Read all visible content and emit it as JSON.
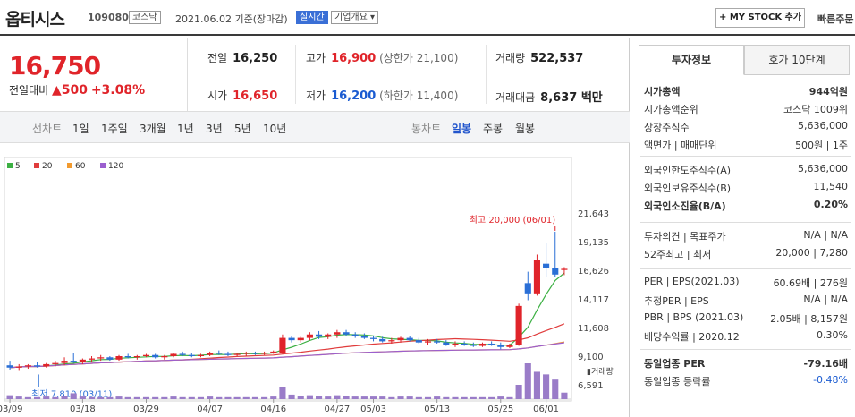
{
  "header": {
    "name": "옵티시스",
    "code": "109080",
    "market_tag": "코스닥",
    "date": "2021.06.02 기준(장마감)",
    "realtime_tag": "실시간",
    "company_tag": "기업개요 ▾",
    "mystock_label": "+ MY STOCK 추가",
    "quick_order": "빠른주문"
  },
  "price": {
    "current": "16,750",
    "change_label": "전일대비",
    "change": "▲500",
    "change_pct": "+3.08%"
  },
  "stats": {
    "prev_label": "전일",
    "prev": "16,250",
    "high_label": "고가",
    "high": "16,900",
    "upper": "(상한가 21,100)",
    "vol_label": "거래량",
    "vol": "522,537",
    "open_label": "시가",
    "open": "16,650",
    "low_label": "저가",
    "low": "16,200",
    "lower": "(하한가 11,400)",
    "amt_label": "거래대금",
    "amt": "8,637 백만"
  },
  "tabs": {
    "line_label": "선차트",
    "d1": "1일",
    "w1": "1주일",
    "m3": "3개월",
    "y1": "1년",
    "y3": "3년",
    "y5": "5년",
    "y10": "10년",
    "candle_label": "봉차트",
    "daily": "일봉",
    "weekly": "주봉",
    "monthly": "월봉"
  },
  "chart_data": {
    "type": "line",
    "title": "",
    "legend": [
      {
        "name": "5",
        "color": "#3cb043"
      },
      {
        "name": "20",
        "color": "#e03c3c"
      },
      {
        "name": "60",
        "color": "#f29a2e"
      },
      {
        "name": "120",
        "color": "#9b5fcf"
      }
    ],
    "y_ticks": [
      "21,643",
      "19,135",
      "16,626",
      "14,117",
      "11,608",
      "9,100",
      "6,591"
    ],
    "x_ticks": [
      "03/09",
      "03/18",
      "03/29",
      "04/07",
      "04/16",
      "04/27",
      "05/03",
      "05/13",
      "05/25",
      "06/01"
    ],
    "ylim": [
      6591,
      21643
    ],
    "high_annotation": "최고 20,000 (06/01)",
    "low_annotation": "최저 7,810 (03/11)",
    "volume_label": "거래량",
    "candles": [
      [
        8300,
        8700,
        7900,
        8100
      ],
      [
        8100,
        8400,
        7810,
        8200
      ],
      [
        8200,
        8400,
        8000,
        8300
      ],
      [
        8300,
        8600,
        8100,
        8200
      ],
      [
        8200,
        8500,
        8100,
        8400
      ],
      [
        8400,
        8700,
        8200,
        8500
      ],
      [
        8500,
        9000,
        8300,
        8700
      ],
      [
        8700,
        9400,
        8500,
        8600
      ],
      [
        8600,
        8900,
        8400,
        8800
      ],
      [
        8800,
        9100,
        8600,
        8900
      ],
      [
        8900,
        9200,
        8700,
        9000
      ],
      [
        9000,
        9100,
        8700,
        8800
      ],
      [
        8800,
        9200,
        8700,
        9100
      ],
      [
        9100,
        9300,
        8900,
        9000
      ],
      [
        9000,
        9200,
        8800,
        9100
      ],
      [
        9100,
        9300,
        9000,
        9200
      ],
      [
        9200,
        9300,
        8900,
        9000
      ],
      [
        9000,
        9200,
        8800,
        9100
      ],
      [
        9100,
        9400,
        9000,
        9300
      ],
      [
        9300,
        9500,
        9100,
        9200
      ],
      [
        9200,
        9400,
        9000,
        9100
      ],
      [
        9100,
        9300,
        9000,
        9200
      ],
      [
        9200,
        9500,
        9100,
        9400
      ],
      [
        9400,
        9600,
        9200,
        9300
      ],
      [
        9300,
        9500,
        9100,
        9200
      ],
      [
        9200,
        9400,
        9100,
        9300
      ],
      [
        9300,
        9500,
        9100,
        9400
      ],
      [
        9400,
        9500,
        9200,
        9300
      ],
      [
        9300,
        9500,
        9200,
        9400
      ],
      [
        9400,
        9600,
        9300,
        9500
      ],
      [
        9400,
        11000,
        9300,
        10700
      ],
      [
        10700,
        10900,
        10300,
        10500
      ],
      [
        10500,
        10800,
        10300,
        10700
      ],
      [
        10700,
        11200,
        10500,
        11000
      ],
      [
        11000,
        11300,
        10600,
        10800
      ],
      [
        10800,
        11100,
        10600,
        11000
      ],
      [
        11000,
        11400,
        10700,
        11200
      ],
      [
        11200,
        11400,
        10900,
        11000
      ],
      [
        11000,
        11200,
        10700,
        10900
      ],
      [
        10900,
        11100,
        10600,
        10700
      ],
      [
        10700,
        10900,
        10400,
        10600
      ],
      [
        10600,
        10800,
        10300,
        10400
      ],
      [
        10400,
        10700,
        10200,
        10500
      ],
      [
        10500,
        10800,
        10300,
        10700
      ],
      [
        10700,
        10900,
        10400,
        10500
      ],
      [
        10500,
        10700,
        10200,
        10300
      ],
      [
        10300,
        10600,
        10100,
        10400
      ],
      [
        10400,
        10600,
        10200,
        10300
      ],
      [
        10300,
        10500,
        10000,
        10100
      ],
      [
        10100,
        10400,
        9900,
        10200
      ],
      [
        10200,
        10400,
        10000,
        10100
      ],
      [
        10100,
        10300,
        9900,
        10000
      ],
      [
        10000,
        10300,
        9900,
        10200
      ],
      [
        10200,
        10400,
        10000,
        10100
      ],
      [
        10100,
        10300,
        9700,
        9900
      ],
      [
        9900,
        10200,
        9800,
        10100
      ],
      [
        10100,
        13700,
        10000,
        13500
      ],
      [
        15500,
        16500,
        14000,
        14600
      ],
      [
        14600,
        18000,
        14400,
        17500
      ],
      [
        17200,
        19000,
        16000,
        16800
      ],
      [
        16800,
        20000,
        16000,
        16250
      ],
      [
        16650,
        16900,
        16200,
        16750
      ]
    ],
    "volumes": [
      6,
      4,
      3,
      3,
      4,
      3,
      5,
      9,
      4,
      3,
      3,
      3,
      4,
      3,
      3,
      3,
      3,
      3,
      4,
      3,
      3,
      3,
      4,
      3,
      3,
      3,
      3,
      3,
      3,
      4,
      18,
      7,
      5,
      6,
      5,
      4,
      6,
      5,
      4,
      4,
      4,
      4,
      3,
      4,
      4,
      3,
      3,
      4,
      3,
      3,
      3,
      3,
      3,
      3,
      4,
      3,
      22,
      55,
      42,
      38,
      30,
      10
    ]
  },
  "side": {
    "tab_info": "투자정보",
    "tab_quote": "호가 10단계",
    "rows": [
      {
        "k": "시가총액",
        "v": "944억원"
      },
      {
        "k": "시가총액순위",
        "v": "코스닥 1009위"
      },
      {
        "k": "상장주식수",
        "v": "5,636,000"
      },
      {
        "k": "액면가 | 매매단위",
        "v": "500원 | 1주"
      },
      {
        "k": "외국인한도주식수(A)",
        "v": "5,636,000"
      },
      {
        "k": "외국인보유주식수(B)",
        "v": "11,540"
      },
      {
        "k": "외국인소진율(B/A)",
        "v": "0.20%"
      },
      {
        "k": "투자의견 | 목표주가",
        "v": "N/A | N/A"
      },
      {
        "k": "52주최고 | 최저",
        "v": "20,000 | 7,280"
      },
      {
        "k": "PER | EPS(2021.03)",
        "v": "60.69배 | 276원"
      },
      {
        "k": "추정PER | EPS",
        "v": "N/A | N/A"
      },
      {
        "k": "PBR | BPS (2021.03)",
        "v": "2.05배 | 8,157원"
      },
      {
        "k": "배당수익률 | 2020.12",
        "v": "0.30%"
      },
      {
        "k": "동일업종 PER",
        "v": "-79.16배"
      },
      {
        "k": "동일업종 등락률",
        "v": "-0.48%"
      }
    ]
  }
}
